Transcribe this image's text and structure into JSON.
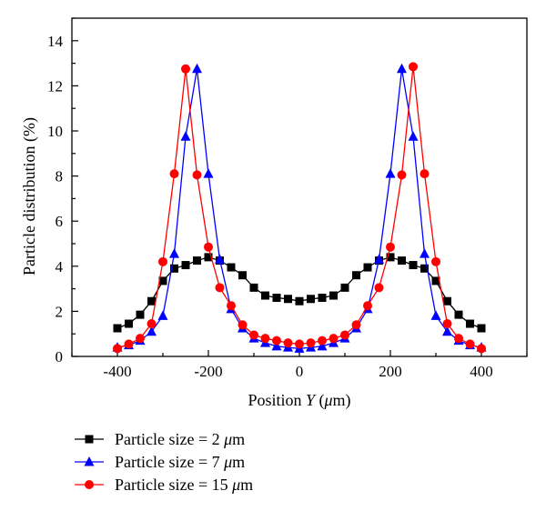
{
  "chart_data": {
    "type": "line",
    "title": "",
    "xlabel": "Position",
    "xlabel_var": "Y",
    "xlabel_unit_prefix": "(",
    "xlabel_unit_mu": "μ",
    "xlabel_unit_rest": "m)",
    "ylabel": "Particle distribution (%)",
    "xlim": [
      -500,
      500
    ],
    "ylim": [
      0,
      15
    ],
    "xticks": [
      -400,
      -200,
      0,
      200,
      400
    ],
    "yticks": [
      0,
      2,
      4,
      6,
      8,
      10,
      12,
      14
    ],
    "grid": false,
    "legend_position": "bottom-left, below plot",
    "series": [
      {
        "name": "Particle size = 2 μm",
        "legend_prefix": "Particle size = 2 ",
        "legend_mu": "μ",
        "legend_rest": "m",
        "color": "#000000",
        "marker": "square",
        "x": [
          -400,
          -375,
          -350,
          -325,
          -300,
          -275,
          -250,
          -225,
          -200,
          -175,
          -150,
          -125,
          -100,
          -75,
          -50,
          -25,
          0,
          25,
          50,
          75,
          100,
          125,
          150,
          175,
          200,
          225,
          250,
          275,
          300,
          325,
          350,
          375,
          400
        ],
        "y": [
          1.25,
          1.45,
          1.85,
          2.45,
          3.35,
          3.9,
          4.05,
          4.25,
          4.4,
          4.25,
          3.95,
          3.6,
          3.05,
          2.7,
          2.6,
          2.55,
          2.45,
          2.55,
          2.6,
          2.7,
          3.05,
          3.6,
          3.95,
          4.25,
          4.4,
          4.25,
          4.05,
          3.9,
          3.35,
          2.45,
          1.85,
          1.45,
          1.25
        ]
      },
      {
        "name": "Particle size = 7 μm",
        "legend_prefix": "Particle size = 7 ",
        "legend_mu": "μ",
        "legend_rest": "m",
        "color": "#0000ff",
        "marker": "triangle",
        "x": [
          -400,
          -375,
          -350,
          -325,
          -300,
          -275,
          -250,
          -225,
          -200,
          -175,
          -150,
          -125,
          -100,
          -75,
          -50,
          -25,
          0,
          25,
          50,
          75,
          100,
          125,
          150,
          175,
          200,
          225,
          250,
          275,
          300,
          325,
          350,
          375,
          400
        ],
        "y": [
          0.4,
          0.5,
          0.7,
          1.1,
          1.8,
          4.55,
          9.75,
          12.75,
          8.1,
          4.3,
          2.1,
          1.25,
          0.8,
          0.6,
          0.45,
          0.4,
          0.35,
          0.4,
          0.45,
          0.6,
          0.8,
          1.25,
          2.1,
          4.3,
          8.1,
          12.75,
          9.75,
          4.55,
          1.8,
          1.1,
          0.7,
          0.5,
          0.4
        ]
      },
      {
        "name": "Particle size = 15 μm",
        "legend_prefix": "Particle size = 15 ",
        "legend_mu": "μ",
        "legend_rest": "m",
        "color": "#ff0000",
        "marker": "circle",
        "x": [
          -400,
          -375,
          -350,
          -325,
          -300,
          -275,
          -250,
          -225,
          -200,
          -175,
          -150,
          -125,
          -100,
          -75,
          -50,
          -25,
          0,
          25,
          50,
          75,
          100,
          125,
          150,
          175,
          200,
          225,
          250,
          275,
          300,
          325,
          350,
          375,
          400
        ],
        "y": [
          0.35,
          0.55,
          0.8,
          1.45,
          4.2,
          8.1,
          12.75,
          8.05,
          4.85,
          3.05,
          2.25,
          1.4,
          0.95,
          0.8,
          0.7,
          0.6,
          0.55,
          0.6,
          0.7,
          0.8,
          0.95,
          1.4,
          2.25,
          3.05,
          4.85,
          8.05,
          12.85,
          8.1,
          4.2,
          1.45,
          0.8,
          0.55,
          0.35
        ]
      }
    ]
  }
}
